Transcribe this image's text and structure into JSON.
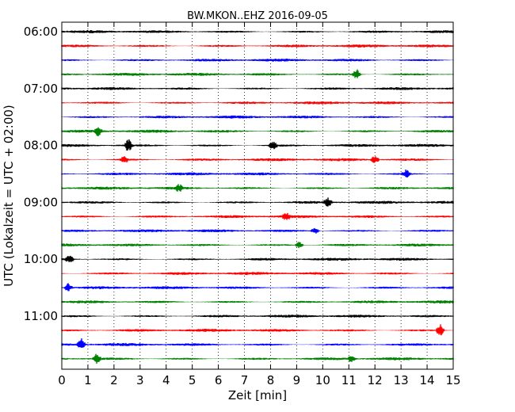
{
  "chart_data": {
    "type": "line",
    "title": "BW.MKON..EHZ 2016-09-05",
    "xlabel": "Zeit  [min]",
    "ylabel": "UTC (Lokalzeit = UTC + 02:00)",
    "xlim": [
      0,
      15
    ],
    "x_ticks": [
      "0",
      "1",
      "2",
      "3",
      "4",
      "5",
      "6",
      "7",
      "8",
      "9",
      "10",
      "11",
      "12",
      "13",
      "14",
      "15"
    ],
    "y_tick_labels": [
      "06:00",
      "07:00",
      "08:00",
      "09:00",
      "10:00",
      "11:00"
    ],
    "grid": "vertical dotted",
    "trace_colors": [
      "#000000",
      "#ff0000",
      "#0000ff",
      "#008000"
    ],
    "trace_count": 24,
    "events": [
      {
        "trace": 3,
        "minute": 11.3,
        "amp": 2.2
      },
      {
        "trace": 7,
        "minute": 1.4,
        "amp": 2.0
      },
      {
        "trace": 8,
        "minute": 2.55,
        "amp": 2.6
      },
      {
        "trace": 8,
        "minute": 8.1,
        "amp": 1.8
      },
      {
        "trace": 9,
        "minute": 2.4,
        "amp": 1.5
      },
      {
        "trace": 9,
        "minute": 12.0,
        "amp": 1.6
      },
      {
        "trace": 10,
        "minute": 13.2,
        "amp": 1.7
      },
      {
        "trace": 11,
        "minute": 4.5,
        "amp": 1.5
      },
      {
        "trace": 12,
        "minute": 10.2,
        "amp": 1.8
      },
      {
        "trace": 13,
        "minute": 8.6,
        "amp": 1.4
      },
      {
        "trace": 14,
        "minute": 9.7,
        "amp": 1.5
      },
      {
        "trace": 15,
        "minute": 9.1,
        "amp": 1.5
      },
      {
        "trace": 16,
        "minute": 0.3,
        "amp": 2.0
      },
      {
        "trace": 18,
        "minute": 0.25,
        "amp": 1.8
      },
      {
        "trace": 21,
        "minute": 14.5,
        "amp": 2.6
      },
      {
        "trace": 22,
        "minute": 0.75,
        "amp": 2.4
      },
      {
        "trace": 23,
        "minute": 1.35,
        "amp": 2.2
      },
      {
        "trace": 23,
        "minute": 11.1,
        "amp": 1.4
      }
    ]
  }
}
